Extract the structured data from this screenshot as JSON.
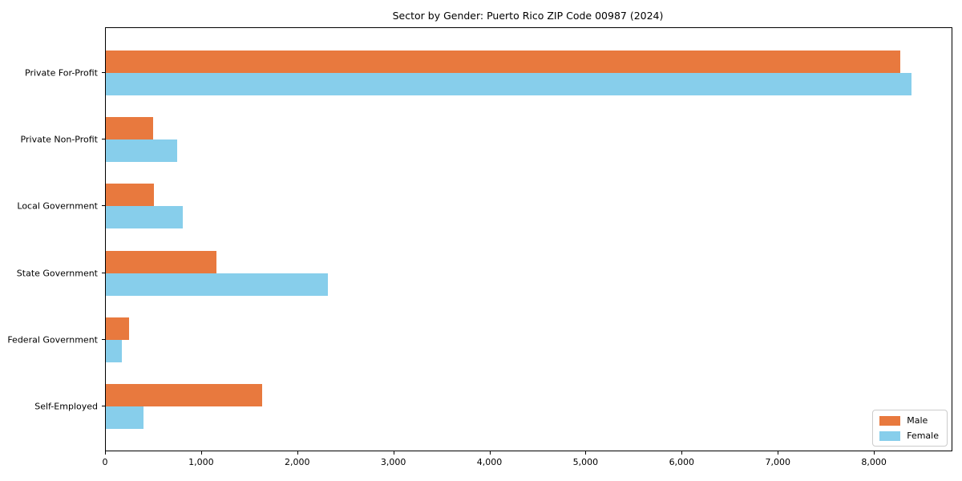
{
  "chart_data": {
    "type": "bar",
    "orientation": "horizontal",
    "title": "Sector by Gender: Puerto Rico ZIP Code 00987 (2024)",
    "categories": [
      "Private For-Profit",
      "Private Non-Profit",
      "Local Government",
      "State Government",
      "Federal Government",
      "Self-Employed"
    ],
    "series": [
      {
        "name": "Male",
        "color": "#e8793e",
        "values": [
          8270,
          490,
          500,
          1150,
          245,
          1630
        ]
      },
      {
        "name": "Female",
        "color": "#87ceeb",
        "values": [
          8380,
          740,
          800,
          2310,
          170,
          395
        ]
      }
    ],
    "xlabel": "",
    "ylabel": "",
    "xlim": [
      0,
      8800
    ],
    "x_ticks": [
      0,
      1000,
      2000,
      3000,
      4000,
      5000,
      6000,
      7000,
      8000
    ],
    "x_tick_labels": [
      "0",
      "1,000",
      "2,000",
      "3,000",
      "4,000",
      "5,000",
      "6,000",
      "7,000",
      "8,000"
    ],
    "grid": false,
    "legend_position": "lower right"
  }
}
